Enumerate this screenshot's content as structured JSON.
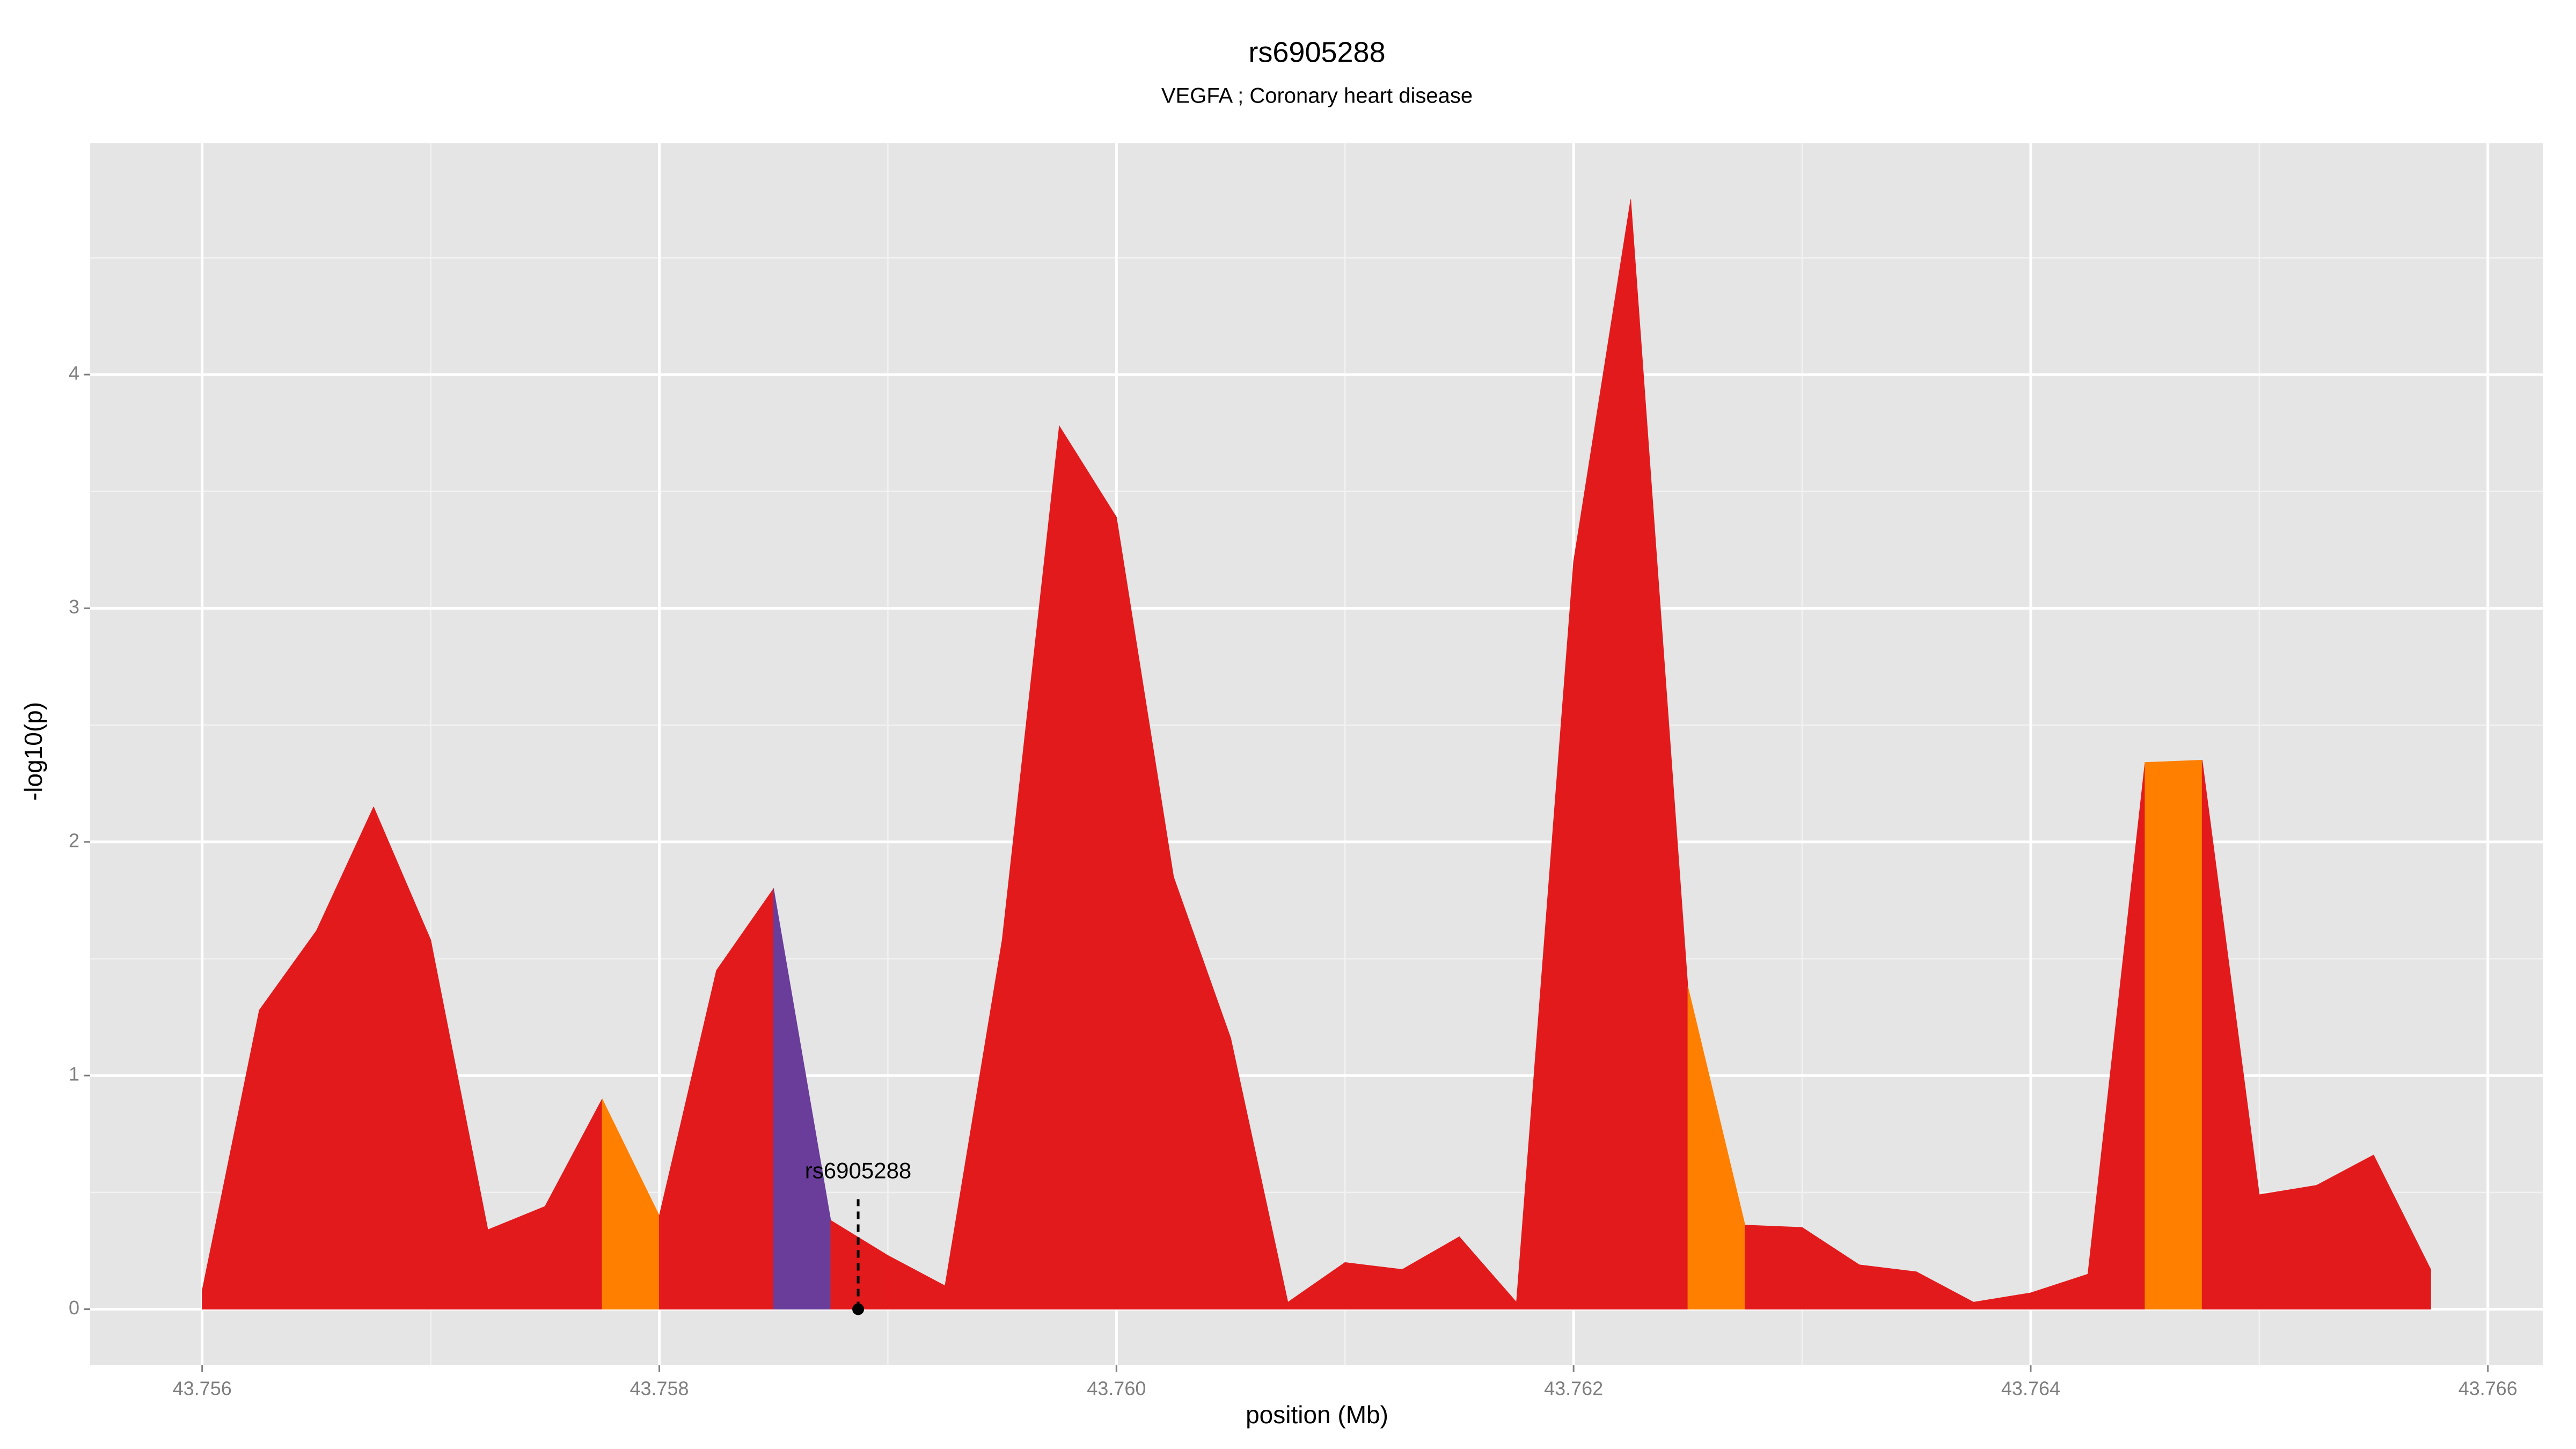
{
  "chart_data": {
    "type": "area",
    "title": "rs6905288",
    "subtitle": "VEGFA ; Coronary heart disease",
    "xlabel": "position (Mb)",
    "ylabel": "-log10(p)",
    "x": [
      43.756,
      43.75625,
      43.7565,
      43.75675,
      43.757,
      43.75725,
      43.7575,
      43.75775,
      43.758,
      43.75825,
      43.7585,
      43.75875,
      43.759,
      43.75925,
      43.7595,
      43.75975,
      43.76,
      43.76025,
      43.7605,
      43.76075,
      43.761,
      43.76125,
      43.7615,
      43.76175,
      43.762,
      43.76225,
      43.7625,
      43.76275,
      43.763,
      43.76325,
      43.7635,
      43.76375,
      43.764,
      43.76425,
      43.7645,
      43.76475,
      43.765,
      43.76525,
      43.7655,
      43.76575
    ],
    "values": [
      0.08,
      1.28,
      1.62,
      2.15,
      1.58,
      0.34,
      0.44,
      0.9,
      0.4,
      1.45,
      1.8,
      0.38,
      0.23,
      0.1,
      1.58,
      3.78,
      3.39,
      1.85,
      1.16,
      0.03,
      0.2,
      0.17,
      0.31,
      0.03,
      3.2,
      4.75,
      1.38,
      0.36,
      0.35,
      0.19,
      0.16,
      0.03,
      0.07,
      0.15,
      2.34,
      2.35,
      0.49,
      0.53,
      0.66,
      0.17
    ],
    "segment_colors": [
      "#e31a1c",
      "#e31a1c",
      "#e31a1c",
      "#e31a1c",
      "#e31a1c",
      "#e31a1c",
      "#e31a1c",
      "#ff7f00",
      "#e31a1c",
      "#e31a1c",
      "#6a3d9a",
      "#e31a1c",
      "#e31a1c",
      "#e31a1c",
      "#e31a1c",
      "#e31a1c",
      "#e31a1c",
      "#e31a1c",
      "#e31a1c",
      "#e31a1c",
      "#e31a1c",
      "#e31a1c",
      "#e31a1c",
      "#e31a1c",
      "#e31a1c",
      "#e31a1c",
      "#ff7f00",
      "#e31a1c",
      "#e31a1c",
      "#e31a1c",
      "#e31a1c",
      "#e31a1c",
      "#e31a1c",
      "#e31a1c",
      "#ff7f00",
      "#e31a1c",
      "#e31a1c",
      "#e31a1c",
      "#e31a1c"
    ],
    "annotation": {
      "label": "rs6905288",
      "x": 43.75887
    },
    "xlim": [
      43.75551,
      43.76624
    ],
    "ylim": [
      -0.24,
      4.99
    ],
    "xticks": [
      43.756,
      43.758,
      {
        "value": 43.76,
        "label": "43.760"
      },
      43.762,
      43.764,
      43.766
    ],
    "yticks": [
      0,
      1,
      2,
      3,
      4
    ],
    "minor_xticks": [
      43.757,
      43.759,
      43.761,
      43.763,
      43.765
    ],
    "minor_yticks": [
      0.5,
      1.5,
      2.5,
      3.5,
      4.5
    ],
    "grid": true
  }
}
